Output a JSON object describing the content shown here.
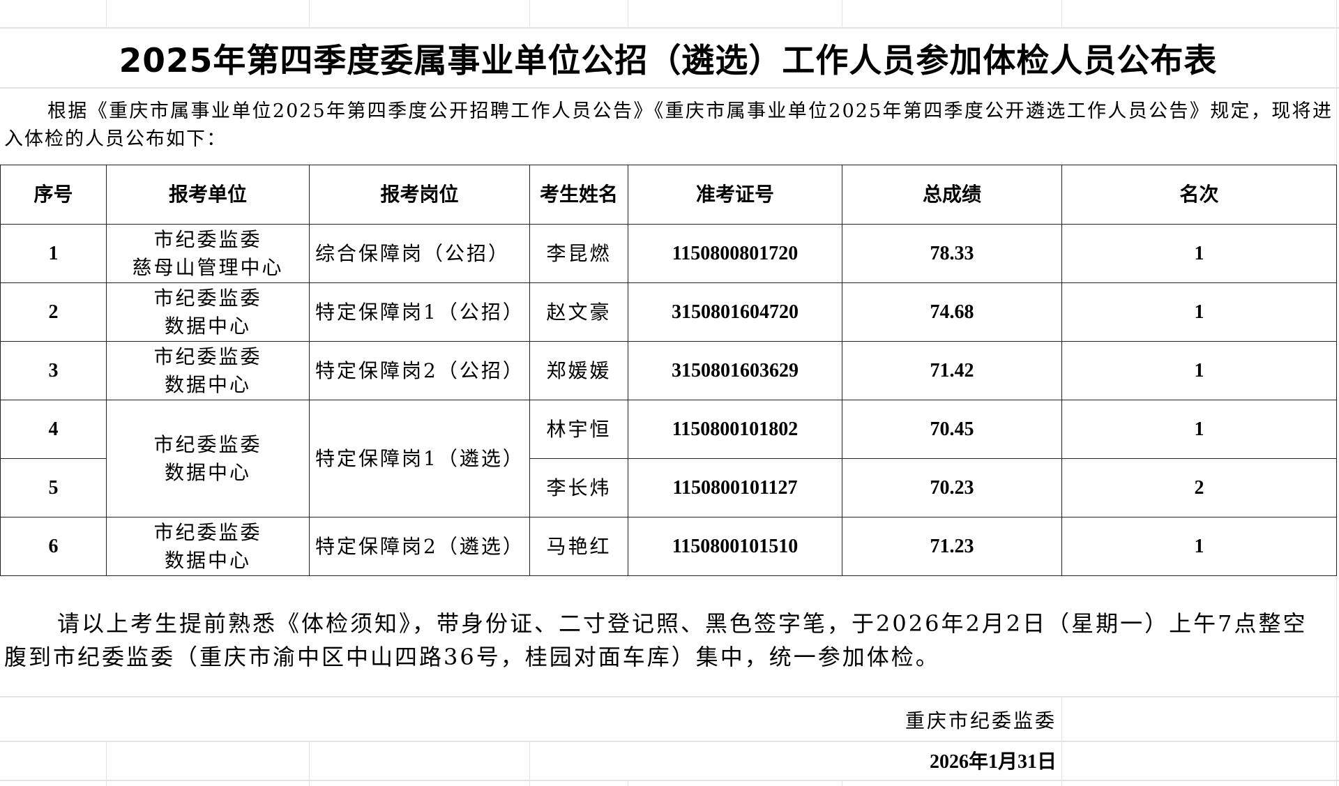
{
  "title": "2025年第四季度委属事业单位公招（遴选）工作人员参加体检人员公布表",
  "intro": "根据《重庆市属事业单位2025年第四季度公开招聘工作人员公告》《重庆市属事业单位2025年第四季度公开遴选工作人员公告》规定，现将进入体检的人员公布如下：",
  "table": {
    "headers": [
      "序号",
      "报考单位",
      "报考岗位",
      "考生姓名",
      "准考证号",
      "总成绩",
      "名次"
    ],
    "rows": [
      {
        "no": "1",
        "unit_line1": "市纪委监委",
        "unit_line2": "慈母山管理中心",
        "position": "综合保障岗（公招）",
        "name": "李昆燃",
        "ticket": "1150800801720",
        "score": "78.33",
        "rank": "1"
      },
      {
        "no": "2",
        "unit_line1": "市纪委监委",
        "unit_line2": "数据中心",
        "position": "特定保障岗1（公招）",
        "name": "赵文豪",
        "ticket": "3150801604720",
        "score": "74.68",
        "rank": "1"
      },
      {
        "no": "3",
        "unit_line1": "市纪委监委",
        "unit_line2": "数据中心",
        "position": "特定保障岗2（公招）",
        "name": "郑媛媛",
        "ticket": "3150801603629",
        "score": "71.42",
        "rank": "1"
      },
      {
        "no": "4",
        "unit_line1": "市纪委监委",
        "unit_line2": "数据中心",
        "position": "特定保障岗1（遴选）",
        "name": "林宇恒",
        "ticket": "1150800101802",
        "score": "70.45",
        "rank": "1"
      },
      {
        "no": "5",
        "name": "李长炜",
        "ticket": "1150800101127",
        "score": "70.23",
        "rank": "2"
      },
      {
        "no": "6",
        "unit_line1": "市纪委监委",
        "unit_line2": "数据中心",
        "position": "特定保障岗2（遴选）",
        "name": "马艳红",
        "ticket": "1150800101510",
        "score": "71.23",
        "rank": "1"
      }
    ]
  },
  "notice": "请以上考生提前熟悉《体检须知》，带身份证、二寸登记照、黑色签字笔，于2026年2月2日（星期一）上午7点整空腹到市纪委监委（重庆市渝中区中山四路36号，桂园对面车库）集中，统一参加体检。",
  "signature": "重庆市纪委监委",
  "date": "2026年1月31日"
}
